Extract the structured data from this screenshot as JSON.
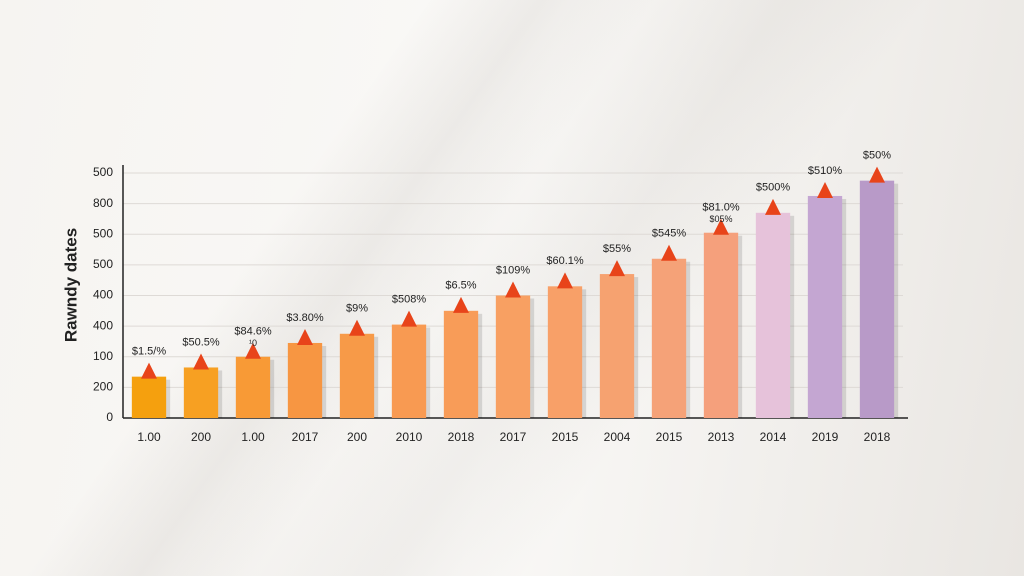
{
  "chart_data": {
    "type": "bar",
    "y_label": "Rawndy dates",
    "categories": [
      "1.00",
      "200",
      "1.00",
      "2017",
      "200",
      "2010",
      "2018",
      "2017",
      "2015",
      "2004",
      "2015",
      "2013",
      "2014",
      "2019",
      "2018"
    ],
    "values": [
      1.35,
      1.65,
      2.0,
      2.45,
      2.75,
      3.05,
      3.5,
      4.0,
      4.3,
      4.7,
      5.2,
      6.05,
      6.7,
      7.25,
      7.75
    ],
    "bar_labels": [
      "$1.5/%",
      "$50.5%",
      "$84.6%",
      "$3.80%",
      "$9%",
      "$508%",
      "$6.5%",
      "$109%",
      "$60.1%",
      "$55%",
      "$545%",
      "$81.0%",
      "$500%",
      "$510%",
      "$50%"
    ],
    "extra_labels": [
      "¹0",
      "$05%"
    ],
    "colors": [
      "#f5a00e",
      "#f7a022",
      "#f89a36",
      "#f79642",
      "#f79a48",
      "#f89a52",
      "#f89c58",
      "#f8a062",
      "#f8a068",
      "#f6a270",
      "#f5a278",
      "#f5a07c",
      "#e6c2da",
      "#c4a6d2",
      "#b89ac8"
    ],
    "marker_color": "#e8441a",
    "ylim": [
      0,
      8
    ],
    "yticks": [
      {
        "value": 0,
        "label": "0"
      },
      {
        "value": 1,
        "label": "200"
      },
      {
        "value": 2,
        "label": "100"
      },
      {
        "value": 3,
        "label": "400"
      },
      {
        "value": 4,
        "label": "400"
      },
      {
        "value": 5,
        "label": "500"
      },
      {
        "value": 6,
        "label": "500"
      },
      {
        "value": 7,
        "label": "800"
      },
      {
        "value": 8,
        "label": "500"
      }
    ],
    "grid": true
  }
}
